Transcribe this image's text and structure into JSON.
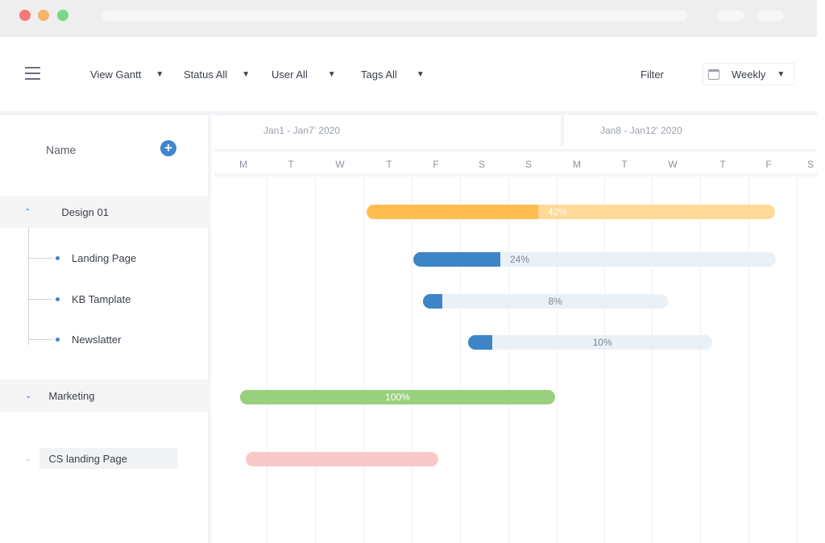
{
  "toolbar": {
    "view": "View Gantt",
    "status": "Status All",
    "user": "User All",
    "tags": "Tags All",
    "filter": "Filter",
    "period": "Weekly",
    "caret": "▼"
  },
  "left": {
    "header": "Name",
    "add_symbol": "+",
    "groups": [
      {
        "label": "Design 01",
        "chevron": "⌃"
      },
      {
        "label": "Marketing",
        "chevron": "⌄"
      },
      {
        "label": "CS landing Page",
        "chevron": "⌄"
      }
    ],
    "children": [
      "Landing Page",
      "KB Tamplate",
      "Newslatter"
    ]
  },
  "timeline": {
    "weeks": [
      "Jan1 - Jan7' 2020",
      "Jan8 - Jan12' 2020"
    ],
    "days": [
      "M",
      "T",
      "W",
      "T",
      "F",
      "S",
      "S",
      "M",
      "T",
      "W",
      "T",
      "F",
      "S"
    ]
  },
  "bars": [
    {
      "task": "Design 01",
      "progress": 42,
      "label": "42%",
      "fill_color": "#ffbd4f",
      "track_color": "#ffd996",
      "label_color": "#ffffff"
    },
    {
      "task": "Landing Page",
      "progress": 24,
      "label": "24%",
      "fill_color": "#3d85c6",
      "track_color": "#eaf1f6",
      "label_color": "#7b8694"
    },
    {
      "task": "KB Tamplate",
      "progress": 8,
      "label": "8%",
      "fill_color": "#3d85c6",
      "track_color": "#eaf1f6",
      "label_color": "#7b8694"
    },
    {
      "task": "Newslatter",
      "progress": 10,
      "label": "10%",
      "fill_color": "#3d85c6",
      "track_color": "#eaf1f6",
      "label_color": "#7b8694"
    },
    {
      "task": "Marketing",
      "progress": 100,
      "label": "100%",
      "fill_color": "#98d07d",
      "track_color": "#98d07d",
      "label_color": "#ffffff"
    },
    {
      "task": "CS landing Page",
      "progress": 0,
      "label": "",
      "fill_color": "#f9c9c9",
      "track_color": "#f9c9c9",
      "label_color": "#ffffff"
    }
  ]
}
